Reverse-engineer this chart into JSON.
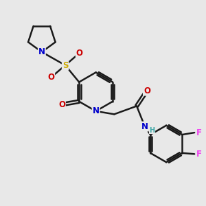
{
  "background_color": "#e8e8e8",
  "bond_color": "#1a1a1a",
  "bond_width": 1.8,
  "atom_colors": {
    "N": "#0000cc",
    "O": "#cc0000",
    "S": "#ccaa00",
    "F": "#ee44ee",
    "H": "#44aaaa",
    "C": "#1a1a1a"
  },
  "font_size_atom": 8.5
}
